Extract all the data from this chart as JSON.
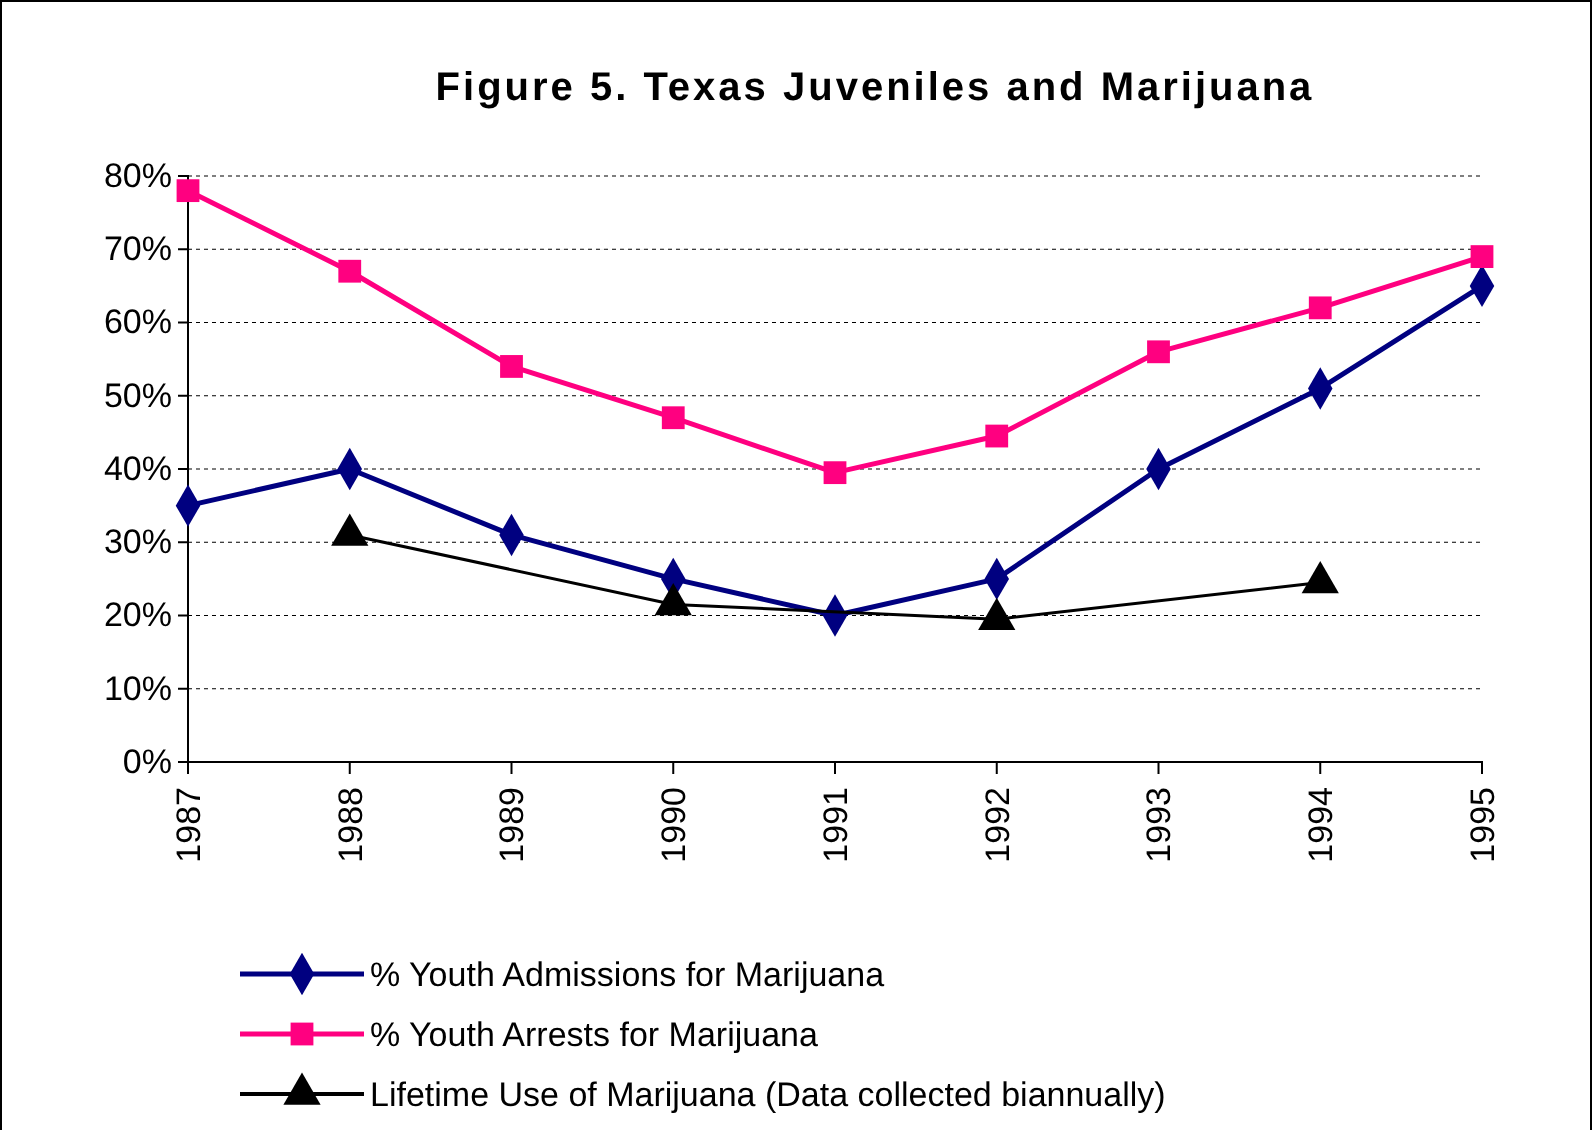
{
  "chart_data": {
    "type": "line",
    "title": "Figure 5. Texas Juveniles and Marijuana",
    "x": [
      1987,
      1988,
      1989,
      1990,
      1991,
      1992,
      1993,
      1994,
      1995
    ],
    "xlim": [
      1987,
      1995
    ],
    "xticks": [
      1987,
      1988,
      1989,
      1990,
      1991,
      1992,
      1993,
      1994,
      1995
    ],
    "ylim": [
      0,
      80
    ],
    "yticks": [
      {
        "value": 0,
        "label": "0%"
      },
      {
        "value": 10,
        "label": "10%"
      },
      {
        "value": 20,
        "label": "20%"
      },
      {
        "value": 30,
        "label": "30%"
      },
      {
        "value": 40,
        "label": "40%"
      },
      {
        "value": 50,
        "label": "50%"
      },
      {
        "value": 60,
        "label": "60%"
      },
      {
        "value": 70,
        "label": "70%"
      },
      {
        "value": 80,
        "label": "80%"
      }
    ],
    "grid": "y",
    "legend": "bottom",
    "line_style": "solid",
    "series": [
      {
        "name": "% Youth Admissions for Marijuana",
        "color": "#000080",
        "marker": "diamond",
        "values": [
          35,
          40,
          31,
          25,
          20,
          25,
          40,
          51,
          65
        ]
      },
      {
        "name": "% Youth Arrests for Marijuana",
        "color": "#ff0080",
        "marker": "square",
        "values": [
          78,
          67,
          54,
          47,
          39.5,
          44.5,
          56,
          62,
          69
        ]
      },
      {
        "name": "Lifetime Use of Marijuana (Data collected biannually)",
        "color": "#000000",
        "marker": "triangle",
        "x": [
          1988,
          1990,
          1992,
          1994
        ],
        "values": [
          31,
          21.5,
          19.5,
          24.5
        ]
      }
    ]
  }
}
